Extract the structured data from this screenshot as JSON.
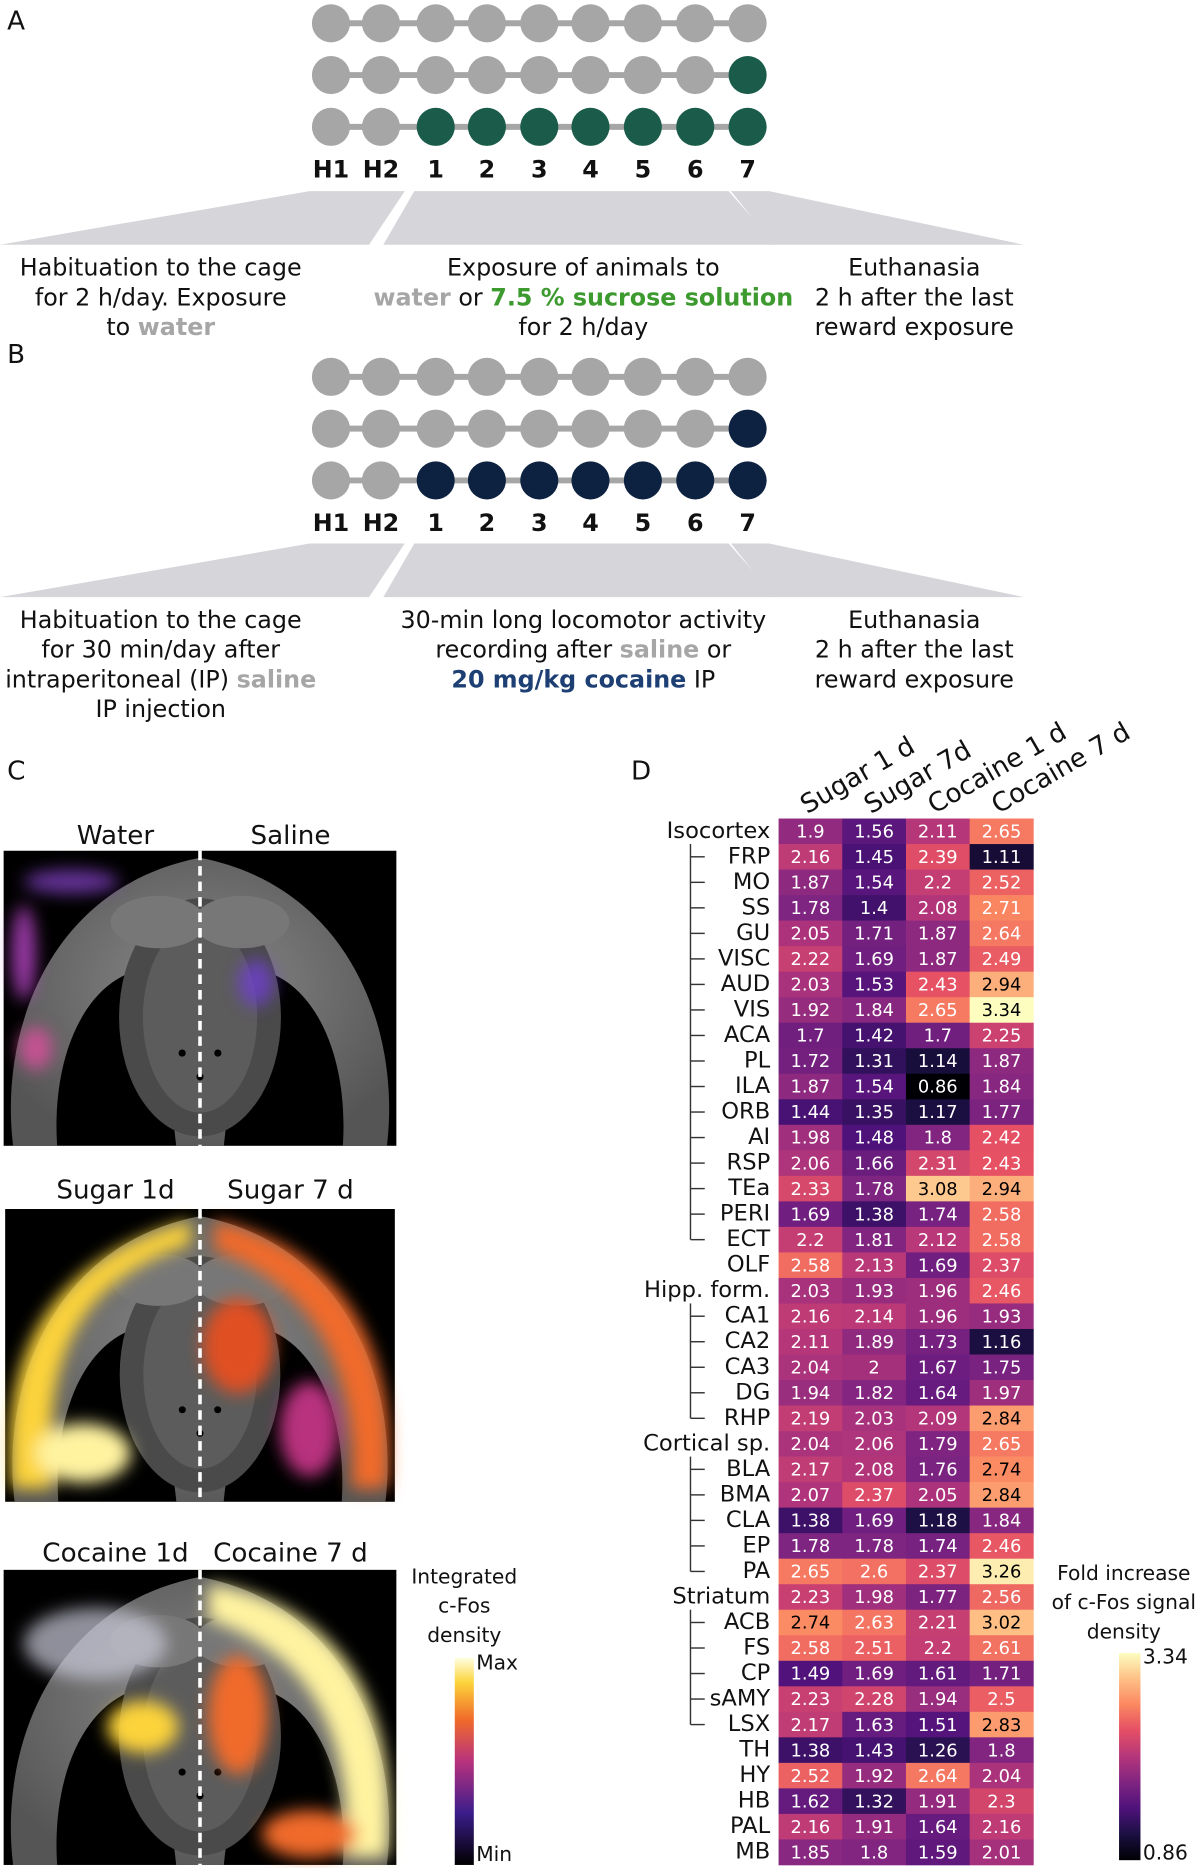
{
  "panel_a": {
    "label": "A",
    "timeline": [
      "H1",
      "H2",
      "1",
      "2",
      "3",
      "4",
      "5",
      "6",
      "7"
    ],
    "highlight_color": "#1a5c49",
    "captions": [
      [
        [
          {
            "text": "Habituation to the cage"
          }
        ],
        [
          {
            "text": "for 2 h/day. Exposure"
          }
        ],
        [
          {
            "text": "to "
          },
          {
            "text": "water",
            "color": "#a6a6a6"
          }
        ]
      ],
      [
        [
          {
            "text": "Exposure of animals to"
          }
        ],
        [
          {
            "text": "water",
            "color": "#a6a6a6"
          },
          {
            "text": " or "
          },
          {
            "text": "7.5 % sucrose solution",
            "color": "#3c9a2f"
          }
        ],
        [
          {
            "text": "for 2 h/day"
          }
        ]
      ],
      [
        [
          {
            "text": "Euthanasia"
          }
        ],
        [
          {
            "text": "2 h after the last"
          }
        ],
        [
          {
            "text": "reward exposure"
          }
        ]
      ]
    ]
  },
  "panel_b": {
    "label": "B",
    "timeline": [
      "H1",
      "H2",
      "1",
      "2",
      "3",
      "4",
      "5",
      "6",
      "7"
    ],
    "highlight_color": "#0d2240",
    "captions": [
      [
        [
          {
            "text": "Habituation to the cage"
          }
        ],
        [
          {
            "text": "for 30 min/day after"
          }
        ],
        [
          {
            "text": "intraperitoneal (IP) "
          },
          {
            "text": "saline",
            "color": "#a6a6a6"
          }
        ],
        [
          {
            "text": "IP injection"
          }
        ]
      ],
      [
        [
          {
            "text": "30-min long locomotor activity"
          }
        ],
        [
          {
            "text": "recording after "
          },
          {
            "text": "saline",
            "color": "#a6a6a6"
          },
          {
            "text": " or"
          }
        ],
        [
          {
            "text": "20 mg/kg cocaine",
            "color": "#1d3f73"
          },
          {
            "text": " IP"
          }
        ]
      ],
      [
        [
          {
            "text": "Euthanasia"
          }
        ],
        [
          {
            "text": "2 h after the last"
          }
        ],
        [
          {
            "text": "reward exposure"
          }
        ]
      ]
    ]
  },
  "panel_c": {
    "label": "C",
    "images": [
      [
        "Water",
        "Saline"
      ],
      [
        "Sugar 1d",
        "Sugar 7 d"
      ],
      [
        "Cocaine 1d",
        "Cocaine 7 d"
      ]
    ],
    "colorbar": {
      "title": [
        "Integrated",
        "c-Fos",
        "density"
      ],
      "max": "Max",
      "min": "Min"
    }
  },
  "panel_d": {
    "label": "D",
    "columns": [
      "Sugar 1 d",
      "Sugar 7d",
      "Cocaine 1 d",
      "Cocaine 7 d"
    ],
    "rows": [
      {
        "name": "Isocortex",
        "level": 0,
        "values": [
          1.9,
          1.56,
          2.11,
          2.65
        ]
      },
      {
        "name": "FRP",
        "level": 1,
        "values": [
          2.16,
          1.45,
          2.39,
          1.11
        ]
      },
      {
        "name": "MO",
        "level": 1,
        "values": [
          1.87,
          1.54,
          2.2,
          2.52
        ]
      },
      {
        "name": "SS",
        "level": 1,
        "values": [
          1.78,
          1.4,
          2.08,
          2.71
        ]
      },
      {
        "name": "GU",
        "level": 1,
        "values": [
          2.05,
          1.71,
          1.87,
          2.64
        ]
      },
      {
        "name": "VISC",
        "level": 1,
        "values": [
          2.22,
          1.69,
          1.87,
          2.49
        ]
      },
      {
        "name": "AUD",
        "level": 1,
        "values": [
          2.03,
          1.53,
          2.43,
          2.94
        ]
      },
      {
        "name": "VIS",
        "level": 1,
        "values": [
          1.92,
          1.84,
          2.65,
          3.34
        ]
      },
      {
        "name": "ACA",
        "level": 1,
        "values": [
          1.7,
          1.42,
          1.7,
          2.25
        ]
      },
      {
        "name": "PL",
        "level": 1,
        "values": [
          1.72,
          1.31,
          1.14,
          1.87
        ]
      },
      {
        "name": "ILA",
        "level": 1,
        "values": [
          1.87,
          1.54,
          0.86,
          1.84
        ]
      },
      {
        "name": "ORB",
        "level": 1,
        "values": [
          1.44,
          1.35,
          1.17,
          1.77
        ]
      },
      {
        "name": "AI",
        "level": 1,
        "values": [
          1.98,
          1.48,
          1.8,
          2.42
        ]
      },
      {
        "name": "RSP",
        "level": 1,
        "values": [
          2.06,
          1.66,
          2.31,
          2.43
        ]
      },
      {
        "name": "TEa",
        "level": 1,
        "values": [
          2.33,
          1.78,
          3.08,
          2.94
        ]
      },
      {
        "name": "PERI",
        "level": 1,
        "values": [
          1.69,
          1.38,
          1.74,
          2.58
        ]
      },
      {
        "name": "ECT",
        "level": 1,
        "values": [
          2.2,
          1.81,
          2.12,
          2.58
        ]
      },
      {
        "name": "OLF",
        "level": 0,
        "values": [
          2.58,
          2.13,
          1.69,
          2.37
        ]
      },
      {
        "name": "Hipp. form.",
        "level": 0,
        "values": [
          2.03,
          1.93,
          1.96,
          2.46
        ]
      },
      {
        "name": "CA1",
        "level": 1,
        "values": [
          2.16,
          2.14,
          1.96,
          1.93
        ]
      },
      {
        "name": "CA2",
        "level": 1,
        "values": [
          2.11,
          1.89,
          1.73,
          1.16
        ]
      },
      {
        "name": "CA3",
        "level": 1,
        "values": [
          2.04,
          2,
          1.67,
          1.75
        ]
      },
      {
        "name": "DG",
        "level": 1,
        "values": [
          1.94,
          1.82,
          1.64,
          1.97
        ]
      },
      {
        "name": "RHP",
        "level": 1,
        "values": [
          2.19,
          2.03,
          2.09,
          2.84
        ]
      },
      {
        "name": "Cortical sp.",
        "level": 0,
        "values": [
          2.04,
          2.06,
          1.79,
          2.65
        ]
      },
      {
        "name": "BLA",
        "level": 1,
        "values": [
          2.17,
          2.08,
          1.76,
          2.74
        ]
      },
      {
        "name": "BMA",
        "level": 1,
        "values": [
          2.07,
          2.37,
          2.05,
          2.84
        ]
      },
      {
        "name": "CLA",
        "level": 1,
        "values": [
          1.38,
          1.69,
          1.18,
          1.84
        ]
      },
      {
        "name": "EP",
        "level": 1,
        "values": [
          1.78,
          1.78,
          1.74,
          2.46
        ]
      },
      {
        "name": "PA",
        "level": 1,
        "values": [
          2.65,
          2.6,
          2.37,
          3.26
        ]
      },
      {
        "name": "Striatum",
        "level": 0,
        "values": [
          2.23,
          1.98,
          1.77,
          2.56
        ]
      },
      {
        "name": "ACB",
        "level": 1,
        "values": [
          2.74,
          2.63,
          2.21,
          3.02
        ]
      },
      {
        "name": "FS",
        "level": 1,
        "values": [
          2.58,
          2.51,
          2.2,
          2.61
        ]
      },
      {
        "name": "CP",
        "level": 1,
        "values": [
          1.49,
          1.69,
          1.61,
          1.71
        ]
      },
      {
        "name": "sAMY",
        "level": 1,
        "values": [
          2.23,
          2.28,
          1.94,
          2.5
        ]
      },
      {
        "name": "LSX",
        "level": 1,
        "values": [
          2.17,
          1.63,
          1.51,
          2.83
        ]
      },
      {
        "name": "TH",
        "level": 0,
        "values": [
          1.38,
          1.43,
          1.26,
          1.8
        ]
      },
      {
        "name": "HY",
        "level": 0,
        "values": [
          2.52,
          1.92,
          2.64,
          2.04
        ]
      },
      {
        "name": "HB",
        "level": 0,
        "values": [
          1.62,
          1.32,
          1.91,
          2.3
        ]
      },
      {
        "name": "PAL",
        "level": 0,
        "values": [
          2.16,
          1.91,
          1.64,
          2.16
        ]
      },
      {
        "name": "MB",
        "level": 0,
        "values": [
          1.85,
          1.8,
          1.59,
          2.01
        ]
      }
    ],
    "colorbar": {
      "title": [
        "Fold increase",
        "of c-Fos signal",
        "density"
      ],
      "min": 0.86,
      "max": 3.34
    }
  }
}
